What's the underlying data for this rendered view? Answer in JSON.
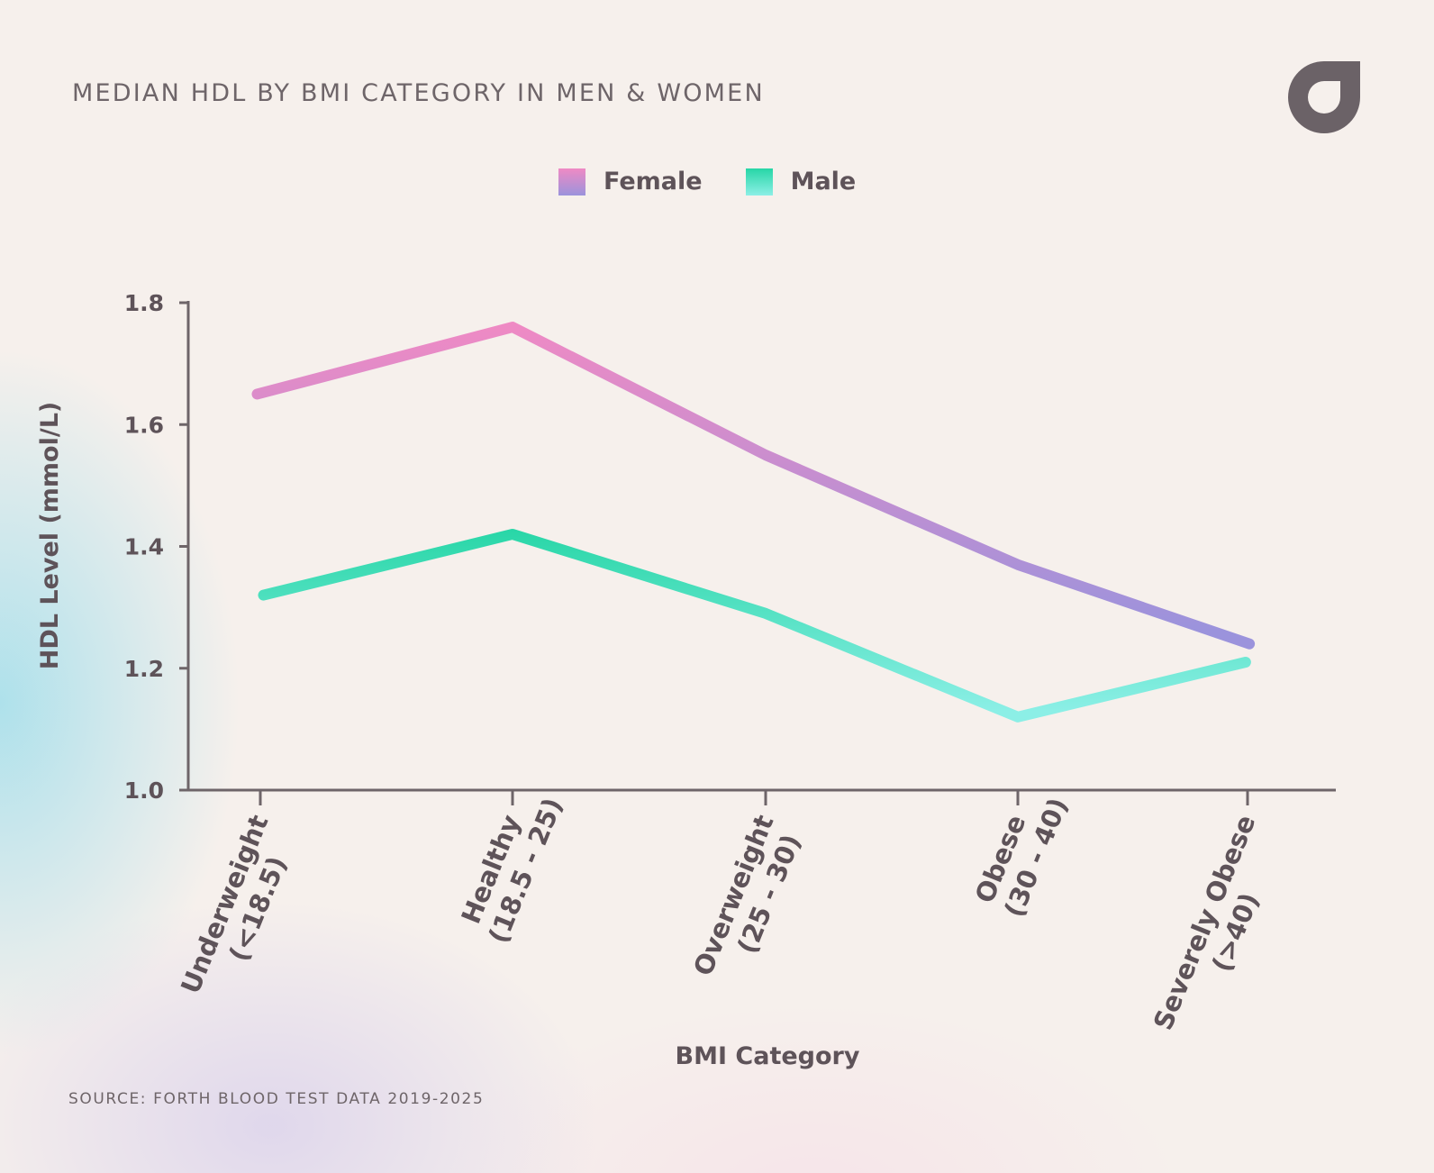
{
  "header": {
    "title": "MEDIAN HDL BY BMI CATEGORY IN MEN & WOMEN",
    "logo_icon": "forth-logo-icon"
  },
  "footer": {
    "source": "SOURCE: FORTH BLOOD TEST DATA 2019-2025"
  },
  "colors": {
    "female_top": "#ef8ac4",
    "female_bottom": "#9b93dc",
    "male_top": "#27d6a6",
    "male_bottom": "#8cefe6",
    "axis": "#6e6569",
    "text": "#5e5359"
  },
  "chart_data": {
    "type": "line",
    "title": "MEDIAN HDL BY BMI CATEGORY IN MEN & WOMEN",
    "xlabel": "BMI Category",
    "ylabel": "HDL Level (mmol/L)",
    "ylim": [
      1.0,
      1.8
    ],
    "yticks": [
      "1.0",
      "1.2",
      "1.4",
      "1.6",
      "1.8"
    ],
    "grid": false,
    "legend_position": "top-center",
    "categories": [
      {
        "line1": "Underweight",
        "line2": "(<18.5)"
      },
      {
        "line1": "Healthy",
        "line2": "(18.5 - 25)"
      },
      {
        "line1": "Overweight",
        "line2": "(25 - 30)"
      },
      {
        "line1": "Obese",
        "line2": "(30 - 40)"
      },
      {
        "line1": "Severely Obese",
        "line2": "(>40)"
      }
    ],
    "series": [
      {
        "name": "Female",
        "values": [
          1.65,
          1.76,
          1.55,
          1.37,
          1.24
        ]
      },
      {
        "name": "Male",
        "values": [
          1.32,
          1.42,
          1.29,
          1.12,
          1.21
        ]
      }
    ]
  }
}
